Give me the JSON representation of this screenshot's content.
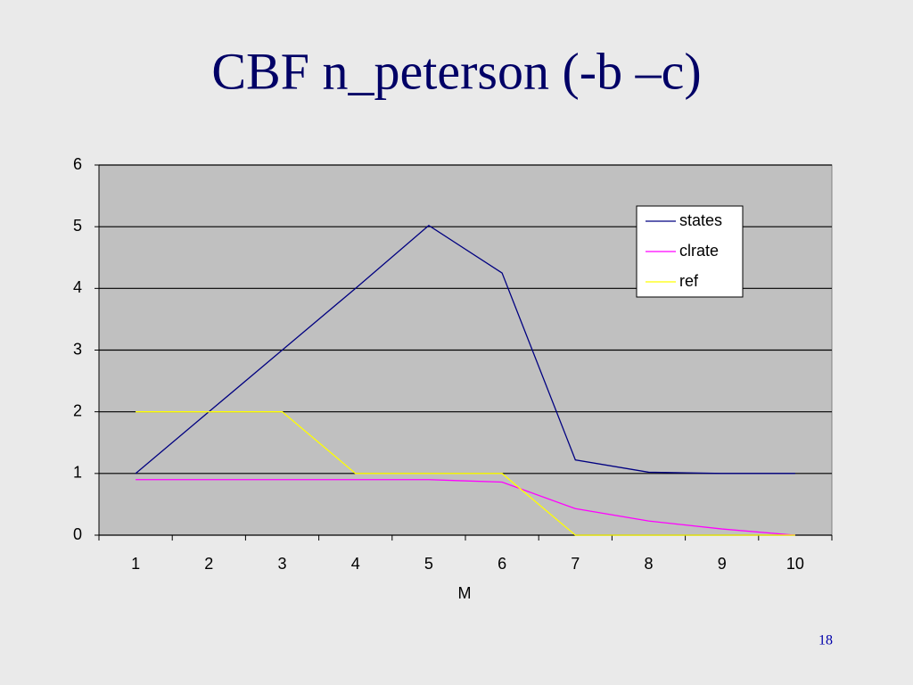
{
  "chart_data": {
    "type": "line",
    "title": "CBF n_peterson (-b –c)",
    "x_label": "M",
    "categories": [
      "1",
      "2",
      "3",
      "4",
      "5",
      "6",
      "7",
      "8",
      "9",
      "10"
    ],
    "series": [
      {
        "name": "states",
        "color": "#000080",
        "values": [
          1,
          2,
          3,
          4,
          5.02,
          4.25,
          1.22,
          1.02,
          1.0,
          1.0
        ]
      },
      {
        "name": "clrate",
        "color": "#ff00ff",
        "values": [
          0.9,
          0.9,
          0.9,
          0.9,
          0.9,
          0.86,
          0.43,
          0.23,
          0.1,
          0.0
        ]
      },
      {
        "name": "ref",
        "color": "#ffff00",
        "values": [
          2,
          2,
          2,
          1,
          1,
          1,
          0,
          0,
          0,
          0
        ]
      }
    ],
    "ylim": [
      0,
      6
    ],
    "yticks": [
      0,
      1,
      2,
      3,
      4,
      5,
      6
    ],
    "grid": true,
    "legend": "upper right"
  },
  "slide_number": "18"
}
